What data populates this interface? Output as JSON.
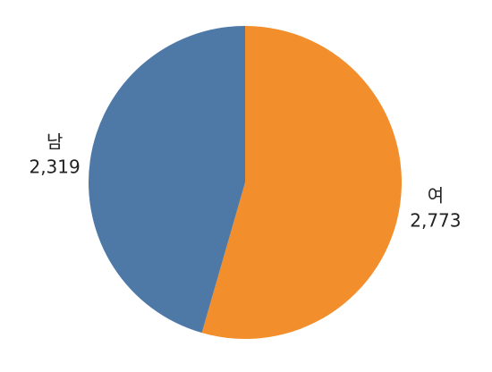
{
  "chart_data": {
    "type": "pie",
    "categories": [
      "여",
      "남"
    ],
    "values": [
      2773,
      2319
    ],
    "value_labels": [
      "2,773",
      "2,319"
    ],
    "colors": [
      "#f28e2b",
      "#4e79a7"
    ]
  }
}
